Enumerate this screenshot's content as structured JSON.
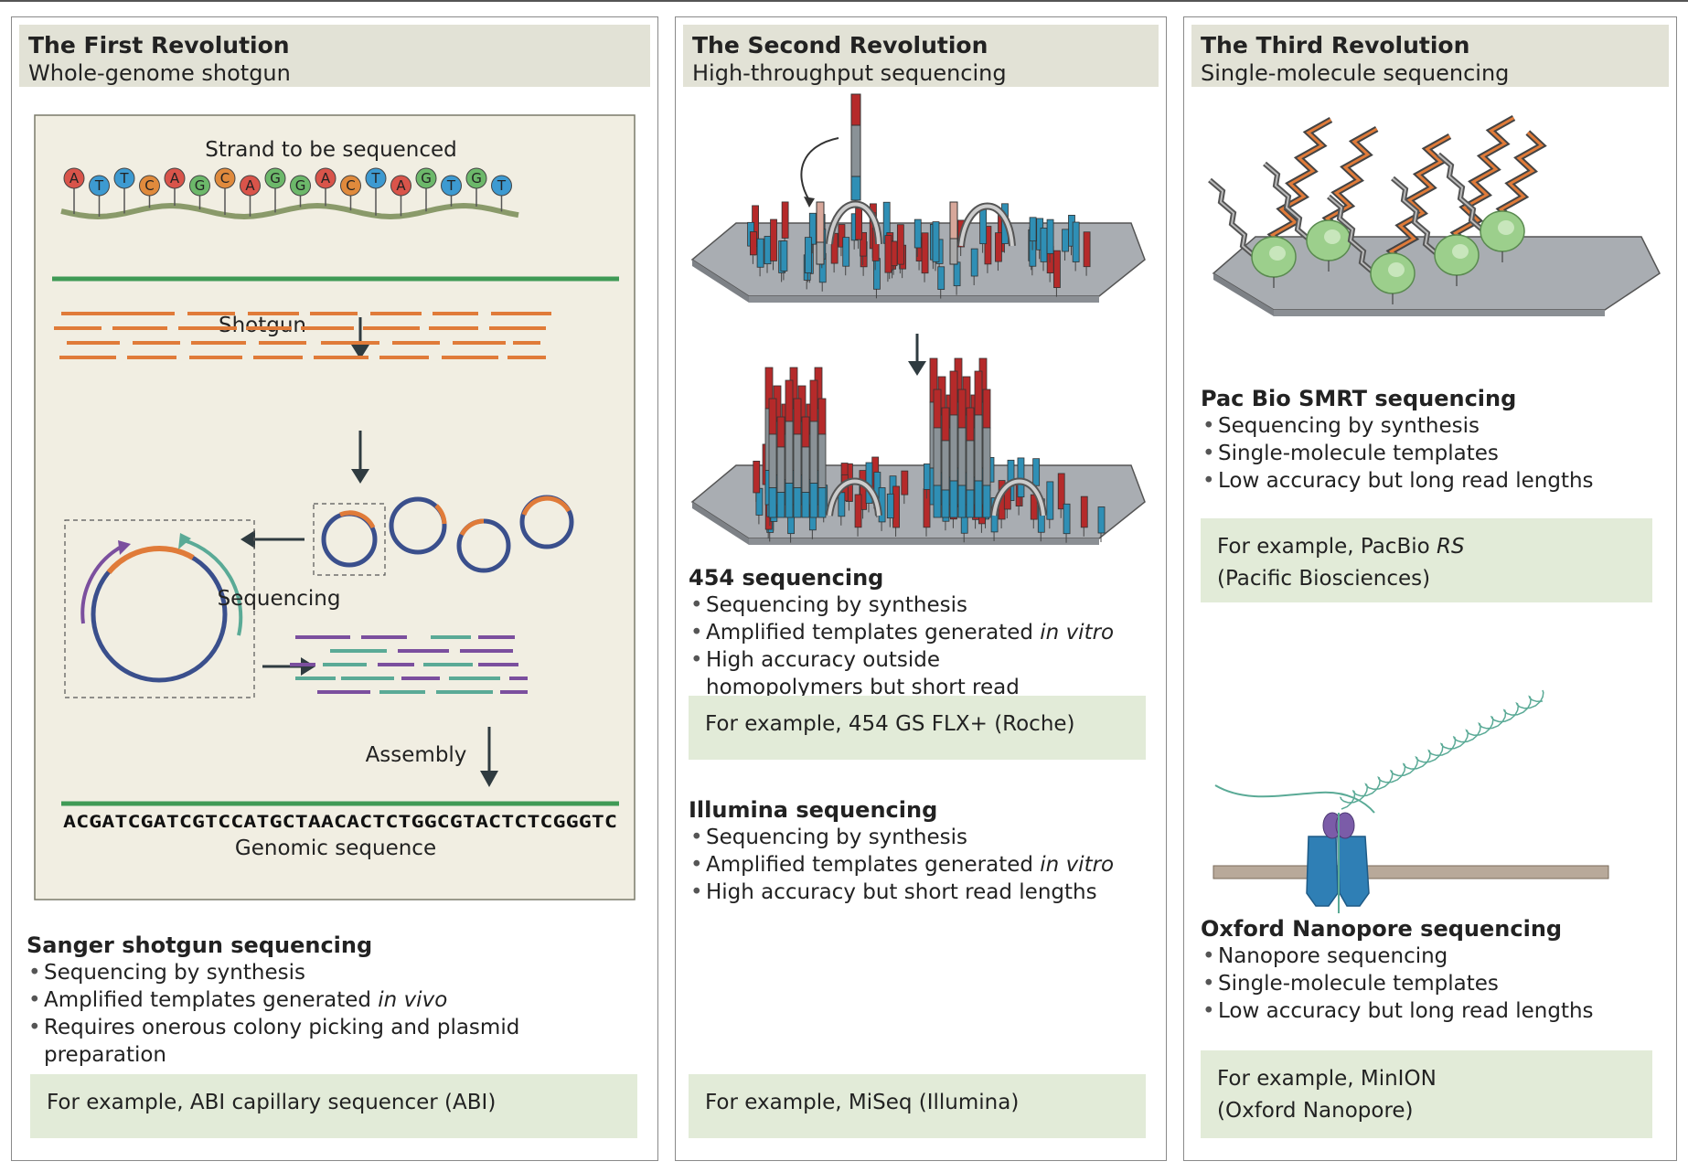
{
  "panels": [
    {
      "title": "The First Revolution",
      "subtitle": "Whole-genome shotgun",
      "diagram": {
        "strand_label": "Strand to be sequenced",
        "nucleotides": [
          "A",
          "T",
          "T",
          "C",
          "A",
          "G",
          "C",
          "A",
          "G",
          "G",
          "A",
          "C",
          "T",
          "A",
          "G",
          "T",
          "G",
          "T"
        ],
        "shotgun_label": "Shotgun",
        "sequencing_label": "Sequencing",
        "assembly_label": "Assembly",
        "genomic_sequence": "ACGATCGATCGTCCATGCTAACACTCTGGCGTACTCTCGGGTC",
        "genomic_label": "Genomic sequence"
      },
      "method": {
        "name": "Sanger shotgun sequencing",
        "bullets": [
          {
            "text": "Sequencing by synthesis",
            "italic": ""
          },
          {
            "text": "Amplified templates generated ",
            "italic": "in vivo"
          },
          {
            "text": "Requires onerous colony picking and plasmid preparation",
            "italic": ""
          }
        ],
        "example": {
          "line1": "For example, ABI capillary sequencer (ABI)",
          "line2": ""
        }
      }
    },
    {
      "title": "The Second Revolution",
      "subtitle": "High-throughput sequencing",
      "methods": [
        {
          "name": "454 sequencing",
          "bullets": [
            {
              "text": "Sequencing by synthesis",
              "italic": ""
            },
            {
              "text": "Amplified templates generated ",
              "italic": "in vitro"
            },
            {
              "text": "High accuracy outside homopolymers but short read lengths",
              "italic": ""
            }
          ],
          "example": {
            "line1": "For example, 454 GS FLX+ (Roche)",
            "line2": ""
          }
        },
        {
          "name": "Illumina sequencing",
          "bullets": [
            {
              "text": "Sequencing by synthesis",
              "italic": ""
            },
            {
              "text": "Amplified templates generated ",
              "italic": "in vitro"
            },
            {
              "text": "High accuracy but short read lengths",
              "italic": ""
            }
          ],
          "example": {
            "line1": "For example, MiSeq (Illumina)",
            "line2": ""
          }
        }
      ]
    },
    {
      "title": "The Third Revolution",
      "subtitle": "Single-molecule sequencing",
      "methods": [
        {
          "name": "Pac Bio SMRT sequencing",
          "bullets": [
            {
              "text": "Sequencing by synthesis",
              "italic": ""
            },
            {
              "text": "Single-molecule templates",
              "italic": ""
            },
            {
              "text": "Low accuracy but long read lengths",
              "italic": ""
            }
          ],
          "example": {
            "line1_prefix": "For example, PacBio ",
            "line1_italic": "RS",
            "line2": "(Pacific Biosciences)"
          }
        },
        {
          "name": "Oxford Nanopore sequencing",
          "bullets": [
            {
              "text": "Nanopore sequencing",
              "italic": ""
            },
            {
              "text": "Single-molecule templates",
              "italic": ""
            },
            {
              "text": "Low accuracy but long read lengths",
              "italic": ""
            }
          ],
          "example": {
            "line1": "For example, MinION",
            "line2": "(Oxford Nanopore)"
          }
        }
      ]
    }
  ],
  "colors": {
    "adenine": "#d9544a",
    "thymine": "#3d9ad1",
    "cytosine": "#e08a3c",
    "guanine": "#6cb86a",
    "fragment_orange": "#e07b39",
    "fragment_purple": "#7b4f9e",
    "fragment_teal": "#5aaa96",
    "plasmid_blue": "#3a4f8c",
    "genome_green": "#3f9a55",
    "cluster_red": "#b52a2a",
    "cluster_blue": "#2f8fb5",
    "polymerase_green": "#9ccf8c",
    "example_bg": "#e2ebd8",
    "header_bg": "#e2e2d6"
  }
}
